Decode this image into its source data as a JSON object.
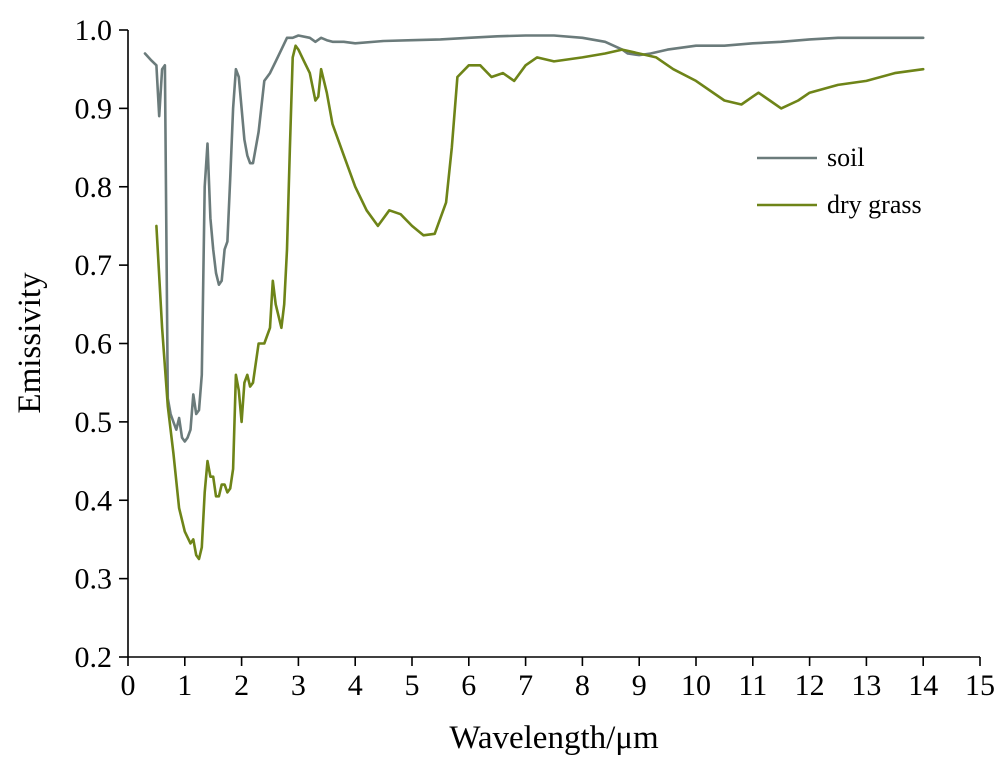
{
  "chart_data": {
    "type": "line",
    "title": "",
    "xlabel": "Wavelength/μm",
    "ylabel": "Emissivity",
    "xlim": [
      0,
      15
    ],
    "ylim": [
      0.2,
      1.0
    ],
    "xticks": [
      0,
      1,
      2,
      3,
      4,
      5,
      6,
      7,
      8,
      9,
      10,
      11,
      12,
      13,
      14,
      15
    ],
    "yticks": [
      0.2,
      0.3,
      0.4,
      0.5,
      0.6,
      0.7,
      0.8,
      0.9,
      1.0
    ],
    "xtick_labels": [
      "0",
      "1",
      "2",
      "3",
      "4",
      "5",
      "6",
      "7",
      "8",
      "9",
      "10",
      "11",
      "12",
      "13",
      "14",
      "15"
    ],
    "ytick_labels": [
      "0.2",
      "0.3",
      "0.4",
      "0.5",
      "0.6",
      "0.7",
      "0.8",
      "0.9",
      "1.0"
    ],
    "grid": false,
    "legend_position": "upper-right",
    "series": [
      {
        "name": "soil",
        "color": "#6b7b7b",
        "x": [
          0.3,
          0.4,
          0.5,
          0.55,
          0.6,
          0.65,
          0.7,
          0.75,
          0.8,
          0.85,
          0.9,
          0.95,
          1.0,
          1.05,
          1.1,
          1.15,
          1.2,
          1.25,
          1.3,
          1.35,
          1.4,
          1.45,
          1.5,
          1.55,
          1.6,
          1.65,
          1.7,
          1.75,
          1.8,
          1.85,
          1.9,
          1.95,
          2.0,
          2.05,
          2.1,
          2.15,
          2.2,
          2.3,
          2.4,
          2.5,
          2.6,
          2.7,
          2.8,
          2.9,
          3.0,
          3.2,
          3.3,
          3.4,
          3.5,
          3.6,
          3.8,
          4.0,
          4.5,
          5.0,
          5.5,
          6.0,
          6.5,
          7.0,
          7.5,
          8.0,
          8.4,
          8.7,
          8.8,
          9.0,
          9.2,
          9.5,
          10.0,
          10.5,
          11.0,
          11.5,
          12.0,
          12.5,
          13.0,
          13.5,
          14.0
        ],
        "values": [
          0.97,
          0.962,
          0.955,
          0.89,
          0.95,
          0.955,
          0.53,
          0.51,
          0.5,
          0.49,
          0.505,
          0.48,
          0.475,
          0.48,
          0.49,
          0.535,
          0.51,
          0.515,
          0.56,
          0.8,
          0.855,
          0.76,
          0.72,
          0.69,
          0.675,
          0.68,
          0.72,
          0.73,
          0.81,
          0.9,
          0.95,
          0.94,
          0.9,
          0.86,
          0.84,
          0.83,
          0.83,
          0.87,
          0.935,
          0.945,
          0.96,
          0.975,
          0.99,
          0.99,
          0.993,
          0.99,
          0.985,
          0.99,
          0.987,
          0.985,
          0.985,
          0.983,
          0.986,
          0.987,
          0.988,
          0.99,
          0.992,
          0.993,
          0.993,
          0.99,
          0.985,
          0.975,
          0.97,
          0.968,
          0.97,
          0.975,
          0.98,
          0.98,
          0.983,
          0.985,
          0.988,
          0.99,
          0.99,
          0.99,
          0.99
        ]
      },
      {
        "name": "dry grass",
        "color": "#6e8418",
        "x": [
          0.5,
          0.6,
          0.7,
          0.8,
          0.9,
          1.0,
          1.1,
          1.15,
          1.2,
          1.25,
          1.3,
          1.35,
          1.4,
          1.45,
          1.5,
          1.55,
          1.6,
          1.65,
          1.7,
          1.75,
          1.8,
          1.85,
          1.9,
          1.95,
          2.0,
          2.05,
          2.1,
          2.15,
          2.2,
          2.3,
          2.4,
          2.5,
          2.55,
          2.6,
          2.7,
          2.75,
          2.8,
          2.85,
          2.9,
          2.95,
          3.0,
          3.1,
          3.2,
          3.3,
          3.35,
          3.4,
          3.5,
          3.6,
          3.8,
          4.0,
          4.2,
          4.4,
          4.6,
          4.8,
          5.0,
          5.2,
          5.4,
          5.6,
          5.7,
          5.8,
          6.0,
          6.2,
          6.4,
          6.6,
          6.8,
          7.0,
          7.2,
          7.5,
          8.0,
          8.4,
          8.7,
          9.0,
          9.3,
          9.6,
          10.0,
          10.5,
          10.8,
          11.0,
          11.1,
          11.3,
          11.5,
          11.8,
          12.0,
          12.5,
          13.0,
          13.5,
          14.0
        ],
        "values": [
          0.75,
          0.62,
          0.52,
          0.46,
          0.39,
          0.36,
          0.345,
          0.35,
          0.33,
          0.325,
          0.34,
          0.41,
          0.45,
          0.43,
          0.43,
          0.405,
          0.405,
          0.42,
          0.42,
          0.41,
          0.415,
          0.44,
          0.56,
          0.54,
          0.5,
          0.55,
          0.56,
          0.545,
          0.55,
          0.6,
          0.6,
          0.62,
          0.68,
          0.65,
          0.62,
          0.65,
          0.72,
          0.85,
          0.965,
          0.98,
          0.975,
          0.96,
          0.945,
          0.91,
          0.915,
          0.95,
          0.92,
          0.88,
          0.84,
          0.8,
          0.77,
          0.75,
          0.77,
          0.765,
          0.75,
          0.738,
          0.74,
          0.78,
          0.85,
          0.94,
          0.955,
          0.955,
          0.94,
          0.945,
          0.935,
          0.955,
          0.965,
          0.96,
          0.965,
          0.97,
          0.975,
          0.97,
          0.965,
          0.95,
          0.935,
          0.91,
          0.905,
          0.915,
          0.92,
          0.91,
          0.9,
          0.91,
          0.92,
          0.93,
          0.935,
          0.945,
          0.95
        ]
      }
    ]
  }
}
